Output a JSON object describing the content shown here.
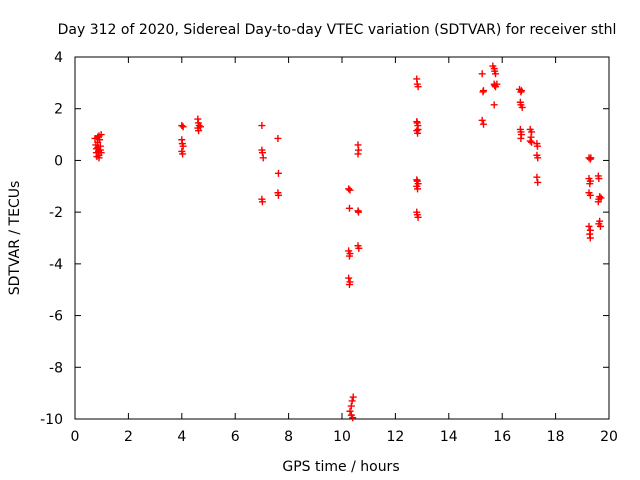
{
  "chart_data": {
    "type": "scatter",
    "title": "Day 312 of 2020, Sidereal Day-to-day VTEC variation (SDTVAR) for receiver sthl",
    "xlabel": "GPS time / hours",
    "ylabel": "SDTVAR / TECUs",
    "xlim": [
      0,
      20
    ],
    "ylim": [
      -10,
      4
    ],
    "xticks": [
      "0",
      "2",
      "4",
      "6",
      "8",
      "10",
      "12",
      "14",
      "16",
      "18",
      "20"
    ],
    "yticks": [
      "4",
      "2",
      "0",
      "-2",
      "-4",
      "-6",
      "-8",
      "-10"
    ],
    "grid": false,
    "marker": "+",
    "series": [
      {
        "name": "SDTVAR",
        "color": "#ff0000",
        "points": [
          [
            0.75,
            0.85
          ],
          [
            0.78,
            0.6
          ],
          [
            0.8,
            0.45
          ],
          [
            0.8,
            0.3
          ],
          [
            0.82,
            0.15
          ],
          [
            0.85,
            0.9
          ],
          [
            0.85,
            0.7
          ],
          [
            0.85,
            0.5
          ],
          [
            0.88,
            0.35
          ],
          [
            0.9,
            0.2
          ],
          [
            0.9,
            0.95
          ],
          [
            0.92,
            0.8
          ],
          [
            0.95,
            0.55
          ],
          [
            0.95,
            0.4
          ],
          [
            0.98,
            0.3
          ],
          [
            0.98,
            1.0
          ],
          [
            0.9,
            0.1
          ],
          [
            4.0,
            1.35
          ],
          [
            4.05,
            1.3
          ],
          [
            4.0,
            0.8
          ],
          [
            4.02,
            0.65
          ],
          [
            4.05,
            0.55
          ],
          [
            4.0,
            0.35
          ],
          [
            4.03,
            0.25
          ],
          [
            4.6,
            1.6
          ],
          [
            4.62,
            1.45
          ],
          [
            4.65,
            1.35
          ],
          [
            4.6,
            1.25
          ],
          [
            4.63,
            1.15
          ],
          [
            4.7,
            1.3
          ],
          [
            7.0,
            1.35
          ],
          [
            7.0,
            0.4
          ],
          [
            7.02,
            0.3
          ],
          [
            7.05,
            0.1
          ],
          [
            7.0,
            -1.5
          ],
          [
            7.02,
            -1.6
          ],
          [
            7.6,
            0.85
          ],
          [
            7.62,
            -0.5
          ],
          [
            7.6,
            -1.25
          ],
          [
            7.62,
            -1.35
          ],
          [
            10.25,
            -1.1
          ],
          [
            10.3,
            -1.15
          ],
          [
            10.28,
            -1.85
          ],
          [
            10.25,
            -3.5
          ],
          [
            10.3,
            -3.6
          ],
          [
            10.28,
            -3.7
          ],
          [
            10.25,
            -4.55
          ],
          [
            10.3,
            -4.7
          ],
          [
            10.28,
            -4.8
          ],
          [
            10.3,
            -9.7
          ],
          [
            10.35,
            -9.85
          ],
          [
            10.4,
            -9.95
          ],
          [
            10.35,
            -9.5
          ],
          [
            10.38,
            -9.3
          ],
          [
            10.42,
            -9.15
          ],
          [
            10.6,
            -1.95
          ],
          [
            10.62,
            -2.0
          ],
          [
            10.6,
            -3.3
          ],
          [
            10.63,
            -3.4
          ],
          [
            10.6,
            0.6
          ],
          [
            10.62,
            0.4
          ],
          [
            10.6,
            0.25
          ],
          [
            12.8,
            3.15
          ],
          [
            12.82,
            2.95
          ],
          [
            12.85,
            2.85
          ],
          [
            12.8,
            1.5
          ],
          [
            12.82,
            1.45
          ],
          [
            12.84,
            1.35
          ],
          [
            12.8,
            1.15
          ],
          [
            12.83,
            1.05
          ],
          [
            12.85,
            1.2
          ],
          [
            12.8,
            -0.75
          ],
          [
            12.82,
            -0.8
          ],
          [
            12.85,
            -0.9
          ],
          [
            12.8,
            -1.0
          ],
          [
            12.83,
            -1.1
          ],
          [
            12.8,
            -2.0
          ],
          [
            12.82,
            -2.1
          ],
          [
            12.85,
            -2.2
          ],
          [
            15.25,
            3.35
          ],
          [
            15.3,
            2.7
          ],
          [
            15.28,
            2.65
          ],
          [
            15.25,
            1.55
          ],
          [
            15.3,
            1.4
          ],
          [
            15.65,
            3.65
          ],
          [
            15.7,
            3.55
          ],
          [
            15.72,
            3.45
          ],
          [
            15.75,
            3.35
          ],
          [
            15.7,
            2.95
          ],
          [
            15.72,
            2.9
          ],
          [
            15.75,
            2.85
          ],
          [
            15.8,
            2.95
          ],
          [
            15.7,
            2.15
          ],
          [
            16.65,
            2.75
          ],
          [
            16.7,
            2.65
          ],
          [
            16.72,
            2.7
          ],
          [
            16.68,
            2.25
          ],
          [
            16.7,
            2.15
          ],
          [
            16.75,
            2.05
          ],
          [
            16.68,
            1.2
          ],
          [
            16.7,
            1.1
          ],
          [
            16.72,
            1.0
          ],
          [
            16.7,
            0.85
          ],
          [
            17.05,
            1.2
          ],
          [
            17.1,
            1.1
          ],
          [
            17.08,
            0.9
          ],
          [
            17.05,
            0.75
          ],
          [
            17.1,
            0.7
          ],
          [
            17.3,
            0.65
          ],
          [
            17.32,
            0.55
          ],
          [
            17.3,
            0.2
          ],
          [
            17.33,
            0.1
          ],
          [
            17.3,
            -0.65
          ],
          [
            17.33,
            -0.85
          ],
          [
            19.25,
            0.1
          ],
          [
            19.3,
            0.05
          ],
          [
            19.32,
            0.1
          ],
          [
            19.25,
            -0.7
          ],
          [
            19.3,
            -0.8
          ],
          [
            19.28,
            -0.9
          ],
          [
            19.25,
            -1.25
          ],
          [
            19.3,
            -1.35
          ],
          [
            19.25,
            -2.55
          ],
          [
            19.3,
            -2.7
          ],
          [
            19.28,
            -2.85
          ],
          [
            19.3,
            -3.0
          ],
          [
            19.6,
            -0.6
          ],
          [
            19.62,
            -0.7
          ],
          [
            19.65,
            -1.4
          ],
          [
            19.62,
            -1.5
          ],
          [
            19.6,
            -1.6
          ],
          [
            19.65,
            -2.35
          ],
          [
            19.62,
            -2.45
          ],
          [
            19.68,
            -2.55
          ],
          [
            19.7,
            -1.45
          ]
        ]
      }
    ]
  }
}
